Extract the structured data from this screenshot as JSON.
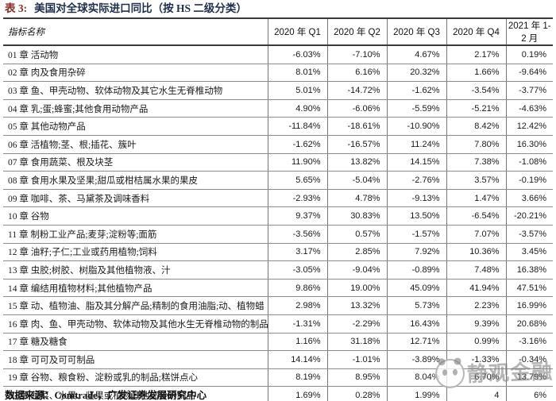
{
  "title": {
    "prefix": "表 3:",
    "text": "美国对全球实际进口同比（按 HS 二级分类）"
  },
  "table": {
    "header": [
      "指标名称",
      "2020 年 Q1",
      "2020 年 Q2",
      "2020 年 Q3",
      "2020 年 Q4",
      "2021 年 1-2 月"
    ],
    "rows": [
      {
        "label": "01 章 活动物",
        "values": [
          "-6.03%",
          "-7.10%",
          "4.67%",
          "2.17%",
          "0.19%"
        ]
      },
      {
        "label": "02 章 肉及食用杂碎",
        "values": [
          "8.01%",
          "6.16%",
          "20.32%",
          "1.66%",
          "-9.64%"
        ]
      },
      {
        "label": "03 章 鱼、甲壳动物、软体动物及其它水生无脊椎动物",
        "values": [
          "5.01%",
          "-14.72%",
          "-1.62%",
          "-3.54%",
          "-3.77%"
        ]
      },
      {
        "label": "04 章 乳;蛋;蜂蜜;其他食用动物产品",
        "values": [
          "4.90%",
          "-6.06%",
          "-5.59%",
          "-5.21%",
          "-4.63%"
        ]
      },
      {
        "label": "05 章 其他动物产品",
        "values": [
          "-11.84%",
          "-18.61%",
          "-10.90%",
          "8.42%",
          "12.42%"
        ]
      },
      {
        "label": "06 章 活植物;茎、根;插花、簇叶",
        "values": [
          "-1.62%",
          "-16.57%",
          "11.24%",
          "7.80%",
          "16.30%"
        ]
      },
      {
        "label": "07 章 食用蔬菜、根及块茎",
        "values": [
          "11.90%",
          "13.82%",
          "14.15%",
          "7.38%",
          "-1.08%"
        ]
      },
      {
        "label": "08 章 食用水果及坚果;甜瓜或柑桔属水果的果皮",
        "values": [
          "5.65%",
          "-5.04%",
          "-2.76%",
          "3.57%",
          "-0.19%"
        ]
      },
      {
        "label": "09 章 咖啡、茶、马黛茶及调味香料",
        "values": [
          "-2.93%",
          "4.78%",
          "-9.13%",
          "1.47%",
          "3.66%"
        ]
      },
      {
        "label": "10 章 谷物",
        "values": [
          "9.37%",
          "30.83%",
          "13.50%",
          "-6.54%",
          "-20.21%"
        ]
      },
      {
        "label": "11 章 制粉工业产品;麦芽;淀粉等;面筋",
        "values": [
          "-3.56%",
          "0.57%",
          "-1.57%",
          "7.07%",
          "-3.57%"
        ]
      },
      {
        "label": "12 章 油籽;子仁;工业或药用植物;饲料",
        "values": [
          "3.17%",
          "2.85%",
          "7.92%",
          "10.36%",
          "3.45%"
        ]
      },
      {
        "label": "13 章 虫胶;树胶、树脂及其他植物液、汁",
        "values": [
          "-3.05%",
          "-9.04%",
          "-0.89%",
          "7.48%",
          "16.38%"
        ]
      },
      {
        "label": "14 章 编结用植物材料;其他植物产品",
        "values": [
          "9.86%",
          "19.00%",
          "45.09%",
          "41.94%",
          "47.51%"
        ]
      },
      {
        "label": "15 章 动、植物油、脂及其分解产品;精制的食用油脂;动、植物蜡",
        "values": [
          "2.98%",
          "13.32%",
          "5.73%",
          "2.23%",
          "16.99%"
        ]
      },
      {
        "label": "16 章 肉、鱼、甲壳动物、软体动物及其他水生无脊椎动物的制品",
        "values": [
          "-1.31%",
          "-2.29%",
          "16.43%",
          "9.39%",
          "20.68%"
        ]
      },
      {
        "label": "17 章 糖及糖食",
        "values": [
          "1.16%",
          "31.18%",
          "12.71%",
          "0.99%",
          "-3.16%"
        ]
      },
      {
        "label": "18 章 可可及可可制品",
        "values": [
          "14.14%",
          "-1.01%",
          "-3.89%",
          "-1.33%",
          "-0.34%"
        ]
      },
      {
        "label": "19 章 谷物、粮食粉、淀粉或乳的制品;糕饼点心",
        "values": [
          "8.19%",
          "8.95%",
          "8.04%",
          "6.70%",
          "13.79%"
        ]
      },
      {
        "label": "20 章 蔬菜、水果、坚果或植物其他部分的制品",
        "values": [
          "1.69%",
          "0.28%",
          "1.99%",
          "4",
          "6%"
        ]
      }
    ]
  },
  "footer": {
    "source": "数据来源：Comtrade，广发证券发展研究中心"
  },
  "watermark": {
    "logo_icon": "panda-logo-icon",
    "text": "静观金融"
  },
  "colors": {
    "title_prefix": "#8E2B25",
    "title_text": "#1E2F4E",
    "border_dark": "#3A3A3A",
    "border_light": "#8C8C8C",
    "watermark_gray": "#808080"
  }
}
